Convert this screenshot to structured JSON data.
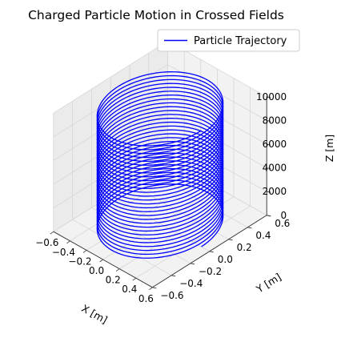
{
  "chart_data": {
    "type": "line3d",
    "title": "Charged Particle Motion in Crossed Fields",
    "xlabel": "X [m]",
    "ylabel": "Y [m]",
    "zlabel": "Z [m]",
    "xlim": [
      -0.6,
      0.6
    ],
    "ylim": [
      -0.6,
      0.6
    ],
    "zlim": [
      0,
      10000
    ],
    "x_ticks": [
      "−0.6",
      "−0.4",
      "−0.2",
      "0.0",
      "0.2",
      "0.4",
      "0.6"
    ],
    "y_ticks": [
      "−0.6",
      "−0.4",
      "−0.2",
      "0.0",
      "0.2",
      "0.4",
      "0.6"
    ],
    "z_ticks": [
      "0",
      "2000",
      "4000",
      "6000",
      "8000",
      "10000"
    ],
    "x_tick_values": [
      -0.6,
      -0.4,
      -0.2,
      0.0,
      0.2,
      0.4,
      0.6
    ],
    "y_tick_values": [
      -0.6,
      -0.4,
      -0.2,
      0.0,
      0.2,
      0.4,
      0.6
    ],
    "z_tick_values": [
      0,
      2000,
      4000,
      6000,
      8000,
      10000
    ],
    "grid": true,
    "legend_position": "top-right",
    "series": [
      {
        "name": "Particle Trajectory",
        "color": "#0000ff",
        "shape": "helix",
        "radius": 0.5,
        "center": [
          0,
          0
        ],
        "z_start": 0,
        "z_end": 9800,
        "turns": 30
      }
    ]
  }
}
